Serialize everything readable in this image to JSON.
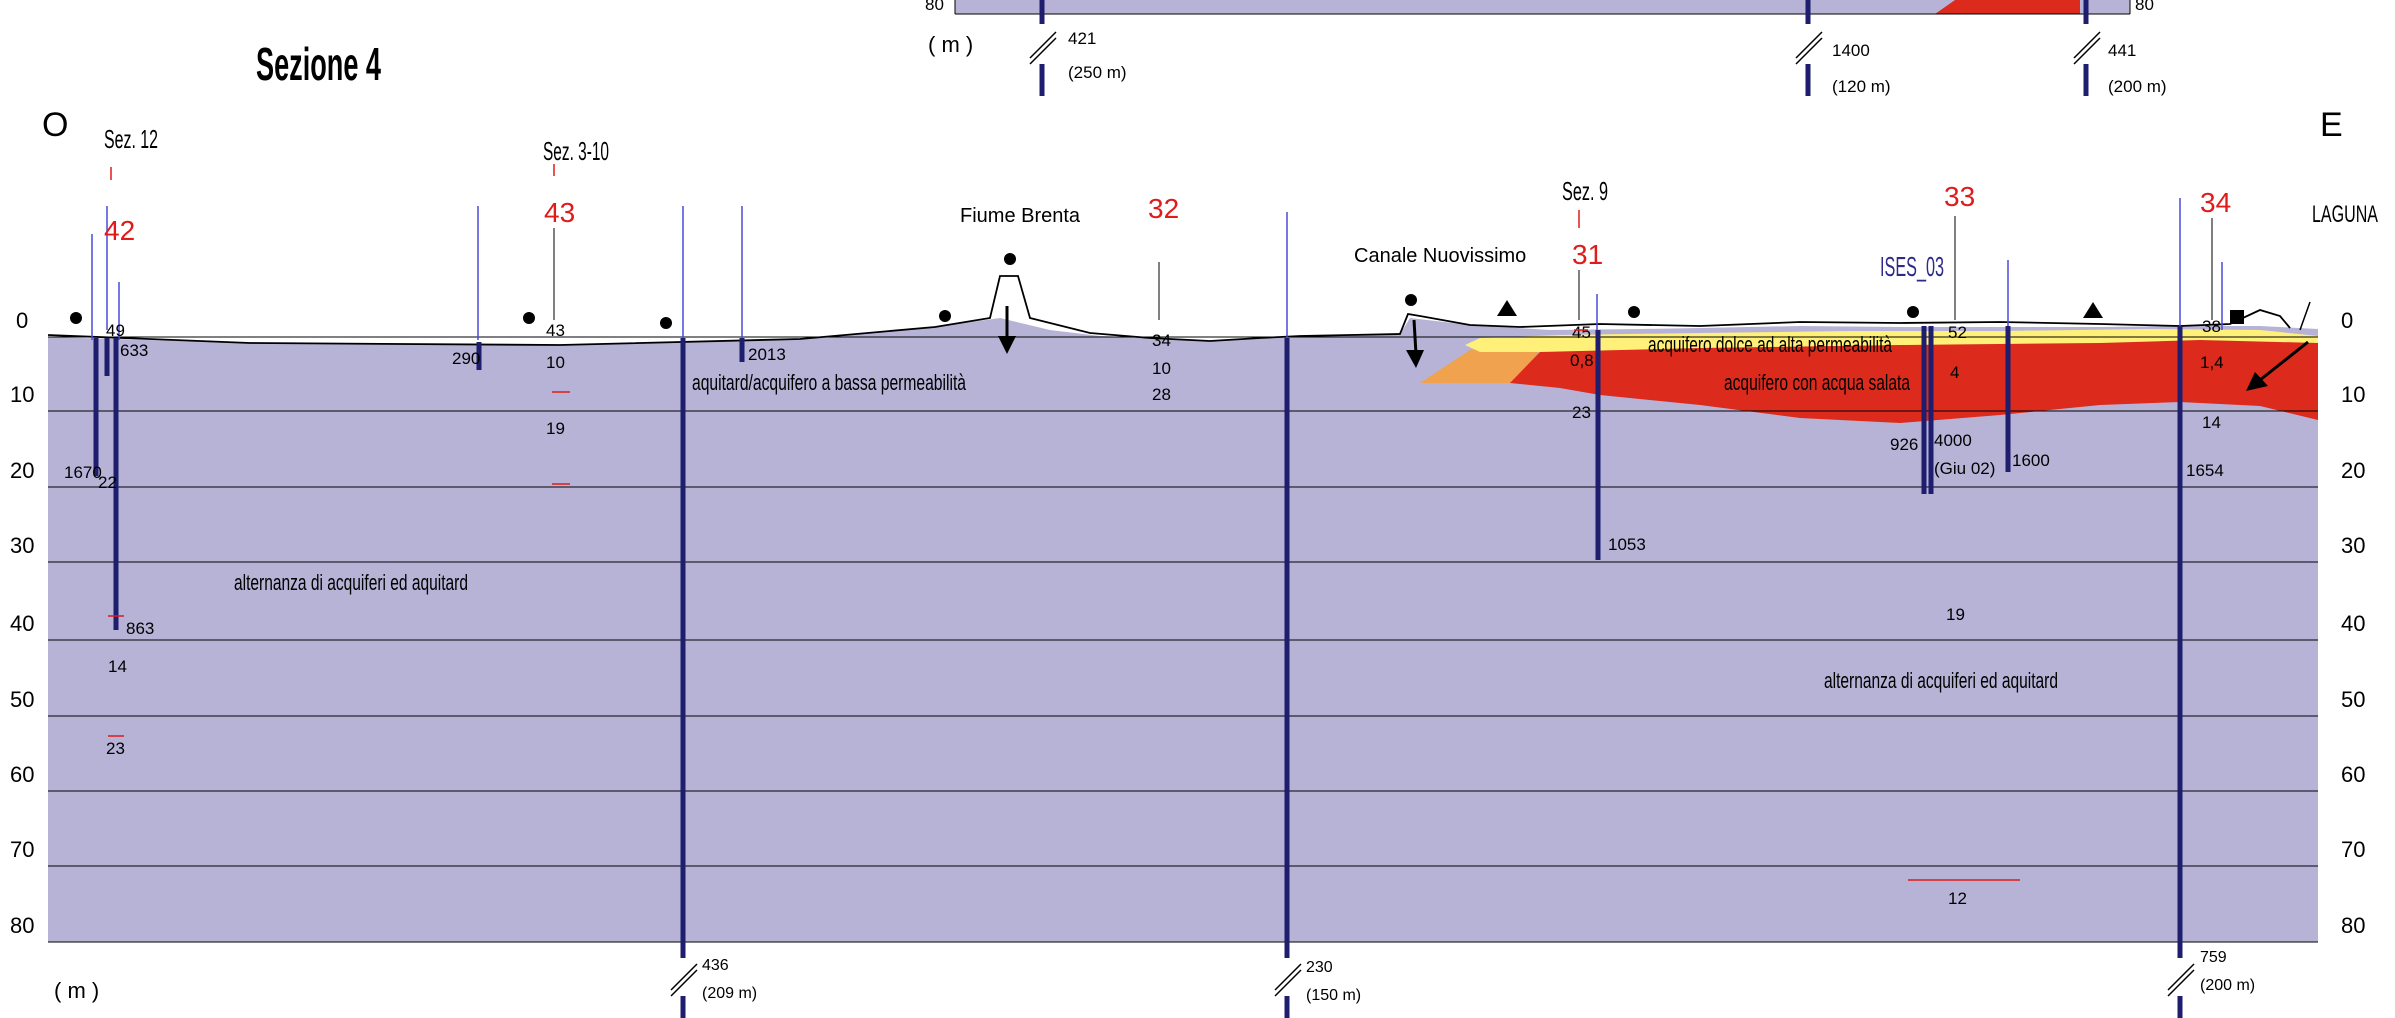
{
  "title": "Sezione 4",
  "orientation": {
    "west": "O",
    "east": "E"
  },
  "unit_label": "( m )",
  "axis": {
    "left_ticks": [
      "0",
      "10",
      "20",
      "30",
      "40",
      "50",
      "60",
      "70",
      "80"
    ],
    "right_ticks": [
      "0",
      "10",
      "20",
      "30",
      "40",
      "50",
      "60",
      "70",
      "80"
    ]
  },
  "top_strip": {
    "tick_left": "80",
    "tick_right": "80",
    "unit_label": "( m )",
    "breaks": [
      {
        "value": "421",
        "spacing": "(250 m)"
      },
      {
        "value": "1400",
        "spacing": "(120 m)"
      },
      {
        "value": "441",
        "spacing": "(200 m)"
      }
    ]
  },
  "section_refs": [
    "Sez. 12",
    "Sez. 3-10",
    "Sez. 9"
  ],
  "well_ids": [
    "42",
    "43",
    "32",
    "31",
    "33",
    "34"
  ],
  "ises_label": "ISES_03",
  "features": [
    "Fiume Brenta",
    "Canale Nuovissimo",
    "LAGUNA"
  ],
  "layer_labels": {
    "aquitard_shallow": "aquitard/acquifero a bassa permeabilità",
    "alternanza_west": "alternanza di acquiferi ed aquitard",
    "alternanza_east": "alternanza di acquiferi ed aquitard",
    "fresh_aquifer": "acquifero dolce ad alta permeabilità",
    "salt_aquifer": "acquifero con acqua salata"
  },
  "values": {
    "v49": "49",
    "v633": "633",
    "v1670": "1670",
    "v22": "22",
    "v863": "863",
    "v14a": "14",
    "v23a": "23",
    "v290": "290",
    "v43": "43",
    "v10a": "10",
    "v19a": "19",
    "v2013": "2013",
    "v34": "34",
    "v10b": "10",
    "v28": "28",
    "v45": "45",
    "v08": "0,8",
    "v23b": "23",
    "v1053": "1053",
    "v52": "52",
    "v4": "4",
    "v926": "926",
    "v4000": "4000",
    "vgiu": "(Giu 02)",
    "v1600": "1600",
    "v19b": "19",
    "v12": "12",
    "v38": "38",
    "v14c": "1,4",
    "v14d": "14",
    "v1654": "1654"
  },
  "bottom_breaks": [
    {
      "value": "436",
      "spacing": "(209 m)"
    },
    {
      "value": "230",
      "spacing": "(150 m)"
    },
    {
      "value": "759",
      "spacing": "(200 m)"
    }
  ],
  "colors": {
    "aquitard": "#b7b3d7",
    "fresh_aquifer": "#fff07a",
    "salt_aquifer": "#dc2a1c",
    "brackish": "#f0a24f",
    "well": "#1e1d6e",
    "well_thin": "#4b4bd9",
    "well_id": "#e11a1a"
  }
}
